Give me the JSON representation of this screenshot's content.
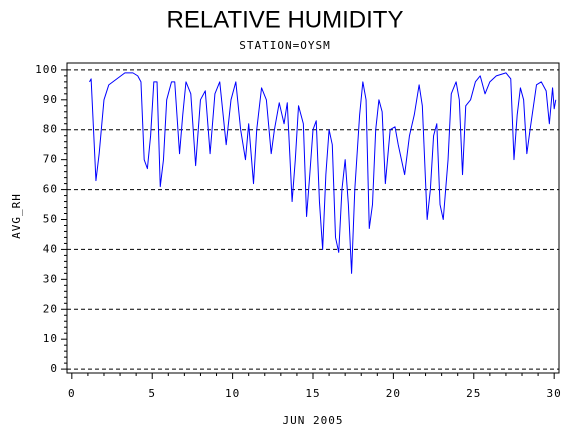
{
  "chart_data": {
    "type": "line",
    "title": "RELATIVE HUMIDITY",
    "subtitle": "STATION=OYSM",
    "x_label": "JUN 2005",
    "y_label": "AVG_RH",
    "xlim": [
      -0.3,
      30.3
    ],
    "ylim": [
      -1.3,
      102.3
    ],
    "xticks": [
      0,
      5,
      10,
      15,
      20,
      25,
      30
    ],
    "yticks": [
      0,
      10,
      20,
      30,
      40,
      50,
      60,
      70,
      80,
      90,
      100
    ],
    "x_minor_ticks": [
      1,
      2,
      3,
      4,
      6,
      7,
      8,
      9,
      11,
      12,
      13,
      14,
      16,
      17,
      18,
      19,
      21,
      22,
      23,
      24,
      26,
      27,
      28,
      29
    ],
    "reference_lines": [
      0,
      20,
      40,
      60,
      80,
      100
    ],
    "series": [
      {
        "name": "AVG_RH",
        "color": "#0000ff",
        "x": [
          1.1,
          1.2,
          1.5,
          1.7,
          2.0,
          2.3,
          2.8,
          3.3,
          3.8,
          4.1,
          4.3,
          4.5,
          4.7,
          4.9,
          5.1,
          5.3,
          5.5,
          5.7,
          5.9,
          6.2,
          6.4,
          6.7,
          6.9,
          7.1,
          7.4,
          7.7,
          8.0,
          8.3,
          8.6,
          8.9,
          9.2,
          9.6,
          9.9,
          10.2,
          10.5,
          10.8,
          11.0,
          11.3,
          11.5,
          11.8,
          12.1,
          12.4,
          12.6,
          12.9,
          13.2,
          13.4,
          13.7,
          13.9,
          14.1,
          14.4,
          14.6,
          14.8,
          15.0,
          15.2,
          15.4,
          15.6,
          15.8,
          16.0,
          16.2,
          16.4,
          16.6,
          16.8,
          17.0,
          17.2,
          17.4,
          17.6,
          17.9,
          18.1,
          18.3,
          18.5,
          18.7,
          18.9,
          19.1,
          19.3,
          19.5,
          19.8,
          20.1,
          20.3,
          20.5,
          20.7,
          21.0,
          21.3,
          21.6,
          21.8,
          22.1,
          22.3,
          22.5,
          22.7,
          22.9,
          23.1,
          23.4,
          23.6,
          23.9,
          24.1,
          24.3,
          24.5,
          24.8,
          25.1,
          25.4,
          25.7,
          26.0,
          26.4,
          27.0,
          27.3,
          27.5,
          27.7,
          27.9,
          28.1,
          28.3,
          28.5,
          28.9,
          29.2,
          29.5,
          29.7,
          29.9,
          30.0,
          30.1
        ],
        "values": [
          96,
          97,
          63,
          72,
          90,
          95,
          97,
          99,
          99,
          98,
          96,
          70,
          67,
          78,
          96,
          96,
          61,
          70,
          90,
          96,
          96,
          72,
          85,
          96,
          92,
          68,
          90,
          93,
          72,
          92,
          96,
          75,
          90,
          96,
          80,
          70,
          82,
          62,
          80,
          94,
          90,
          72,
          80,
          89,
          82,
          89,
          56,
          70,
          88,
          82,
          51,
          65,
          80,
          83,
          56,
          40,
          65,
          80,
          75,
          44,
          39,
          60,
          70,
          55,
          32,
          60,
          85,
          96,
          90,
          47,
          55,
          80,
          90,
          86,
          62,
          80,
          81,
          75,
          70,
          65,
          78,
          85,
          95,
          88,
          50,
          60,
          78,
          82,
          55,
          50,
          70,
          92,
          96,
          90,
          65,
          88,
          90,
          96,
          98,
          92,
          96,
          98,
          99,
          97,
          70,
          85,
          94,
          90,
          72,
          80,
          95,
          96,
          93,
          82,
          94,
          87,
          90
        ]
      }
    ]
  }
}
